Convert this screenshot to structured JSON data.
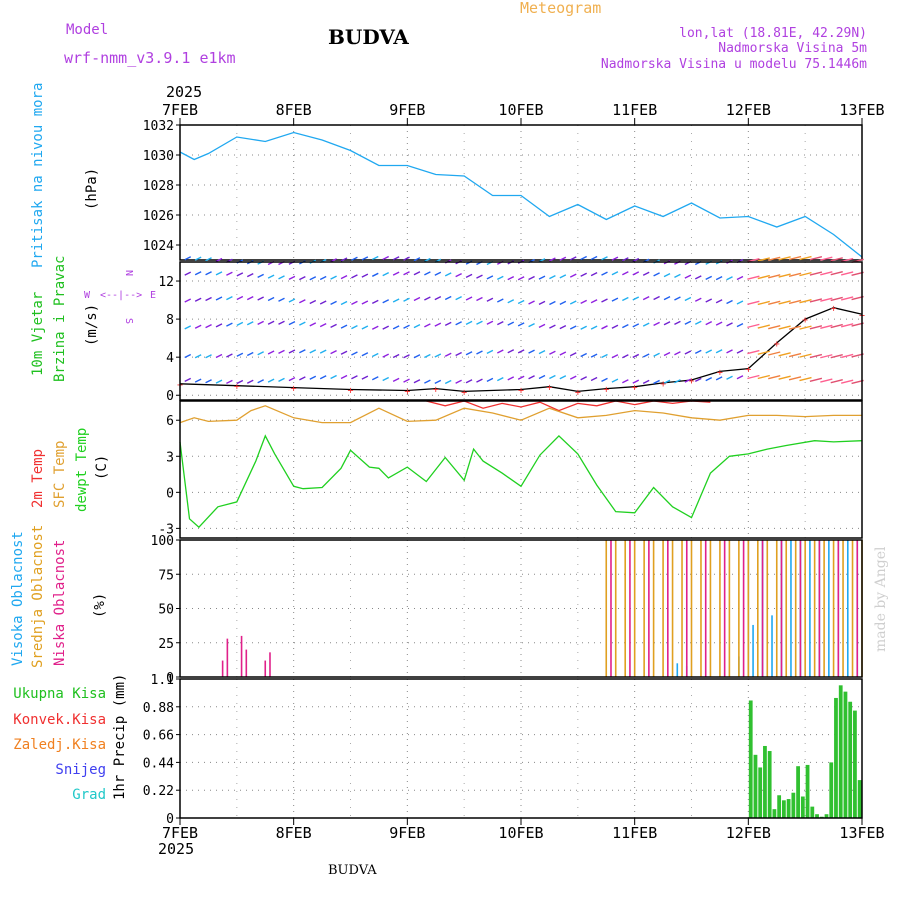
{
  "header": {
    "model_label": "Model",
    "model_name": "wrf-nmm_v3.9.1 e1km",
    "station": "BUDVA",
    "product": "Meteogram",
    "lonlat": "lon,lat (18.81E, 42.29N)",
    "elevation": "Nadmorska Visina 5m",
    "model_elevation": "Nadmorska Visina u modelu 75.1446m",
    "year_top": "2025",
    "year_bottom": "2025",
    "footer_station": "BUDVA",
    "credit": "made by Angel"
  },
  "colors": {
    "title_purple": "#b040e0",
    "product_orange": "#f0b050",
    "pressure": "#20a8f0",
    "temp2m": "#f03030",
    "sfc_temp": "#e0a030",
    "dewpoint": "#20d020",
    "high_cloud": "#20a8f0",
    "mid_cloud": "#e0a020",
    "low_cloud": "#e0208a",
    "precip_total": "#30c030",
    "convective": "#f03030",
    "freezing": "#f08020",
    "snow": "#4040f0",
    "hail": "#20c8c8",
    "wind_label": "#20c020",
    "credit": "#cfcfcf"
  },
  "legends": {
    "pressure": {
      "label": "Pritisak na nivou mora",
      "unit": "(hPa)"
    },
    "wind": {
      "label1": "10m Vjetar",
      "label2": "Brzina i Pravac",
      "unit": "(m/s)",
      "compass_w": "W",
      "compass_e": "E",
      "compass_arrows": "<--|-->",
      "compass_n": "N",
      "compass_s": "S"
    },
    "temperature": {
      "label_2m": "2m Temp",
      "label_sfc": "SFC Temp",
      "label_dew": "dewpt Temp",
      "unit": "(C)"
    },
    "cloud": {
      "high": "Visoka Oblacnost",
      "mid": "Srednja Oblacnost",
      "low": "Niska Oblacnost",
      "unit": "(%)"
    },
    "precip": {
      "total": "Ukupna Kisa",
      "convective": "Konvek.Kisa",
      "freezing": "Zaledj.Kisa",
      "snow": "Snijeg",
      "hail": "Grad",
      "unit": "1hr Precip (mm)"
    }
  },
  "chart_data": [
    {
      "type": "line",
      "name": "pressure",
      "x_unit": "hours from 7FEB 00",
      "x_ticks": [
        "7FEB",
        "8FEB",
        "9FEB",
        "10FEB",
        "11FEB",
        "12FEB",
        "13FEB"
      ],
      "ylim": [
        1023,
        1032
      ],
      "y_ticks": [
        1024,
        1026,
        1028,
        1030,
        1032
      ],
      "grid": true,
      "series": [
        {
          "x": [
            0,
            3,
            6,
            12,
            18,
            24,
            30,
            36,
            42,
            48,
            54,
            60,
            66,
            72,
            78,
            84,
            90,
            96,
            102,
            108,
            114,
            120,
            126,
            132,
            138,
            144
          ],
          "y": [
            1030.2,
            1029.7,
            1030.1,
            1031.2,
            1030.9,
            1031.5,
            1031,
            1030.3,
            1029.3,
            1029.3,
            1028.7,
            1028.6,
            1027.3,
            1027.3,
            1025.9,
            1026.7,
            1025.7,
            1026.6,
            1025.9,
            1026.8,
            1025.8,
            1025.9,
            1025.2,
            1025.9,
            1024.7,
            1023.2
          ]
        }
      ]
    },
    {
      "type": "line",
      "name": "wind",
      "ylim": [
        -0.5,
        14
      ],
      "y_ticks": [
        0,
        4,
        8,
        12
      ],
      "grid": true,
      "series": [
        {
          "name": "wind speed",
          "x": [
            0,
            12,
            24,
            36,
            48,
            54,
            60,
            72,
            78,
            84,
            90,
            96,
            102,
            108,
            114,
            120,
            126,
            132,
            138,
            144
          ],
          "y": [
            1.2,
            1,
            0.8,
            0.6,
            0.5,
            0.7,
            0.4,
            0.6,
            0.9,
            0.4,
            0.7,
            0.9,
            1.3,
            1.6,
            2.5,
            2.8,
            5.5,
            8,
            9.2,
            8.5
          ]
        }
      ],
      "barb_rows": [
        1.5,
        4.2,
        7.2,
        9.8,
        12.4,
        14
      ]
    },
    {
      "type": "line",
      "name": "temperature",
      "ylim": [
        -3.8,
        7.6
      ],
      "y_ticks": [
        -3,
        0,
        3,
        6
      ],
      "grid": true,
      "series": [
        {
          "name": "2m Temp",
          "x": [
            52,
            56,
            60,
            64,
            68,
            72,
            76,
            80,
            84,
            88,
            92,
            96,
            100,
            104,
            108,
            112
          ],
          "y": [
            7.6,
            7.2,
            7.6,
            7.0,
            7.4,
            7.1,
            7.5,
            6.8,
            7.4,
            7.2,
            7.6,
            7.3,
            7.6,
            7.4,
            7.6,
            7.5
          ]
        },
        {
          "name": "SFC Temp",
          "x": [
            0,
            3,
            6,
            12,
            15,
            18,
            24,
            30,
            36,
            42,
            48,
            54,
            60,
            66,
            72,
            78,
            84,
            90,
            96,
            102,
            108,
            114,
            120,
            126,
            132,
            138,
            144
          ],
          "y": [
            5.8,
            6.2,
            5.9,
            6.0,
            6.8,
            7.2,
            6.2,
            5.8,
            5.8,
            7.0,
            5.9,
            6.0,
            7.0,
            6.6,
            6.0,
            7.0,
            6.2,
            6.4,
            6.8,
            6.6,
            6.2,
            6.0,
            6.4,
            6.4,
            6.3,
            6.4,
            6.4
          ]
        },
        {
          "name": "dewpt Temp",
          "x": [
            0,
            2,
            4,
            8,
            12,
            16,
            18,
            20,
            24,
            26,
            30,
            34,
            36,
            40,
            42,
            44,
            48,
            52,
            56,
            60,
            62,
            64,
            68,
            72,
            76,
            80,
            84,
            88,
            92,
            96,
            100,
            104,
            108,
            112,
            116,
            120,
            124,
            128,
            134,
            138,
            144
          ],
          "y": [
            4.2,
            -2.2,
            -2.9,
            -1.2,
            -0.8,
            2.6,
            4.7,
            3.2,
            0.5,
            0.3,
            0.4,
            2.0,
            3.5,
            2.1,
            2.0,
            1.2,
            2.1,
            0.9,
            2.9,
            1.0,
            3.6,
            2.6,
            1.6,
            0.5,
            3.1,
            4.7,
            3.2,
            0.6,
            -1.6,
            -1.7,
            0.4,
            -1.2,
            -2.1,
            1.6,
            3.0,
            3.2,
            3.6,
            3.9,
            4.3,
            4.2,
            4.3
          ]
        }
      ]
    },
    {
      "type": "bar",
      "name": "cloud",
      "ylim": [
        0,
        100
      ],
      "y_ticks": [
        0,
        25,
        50,
        75,
        100
      ],
      "grid": true,
      "series": [
        {
          "name": "Visoka Oblacnost",
          "x": [
            105,
            107,
            118,
            120,
            121,
            123,
            125,
            127,
            129,
            131,
            133,
            135,
            137,
            139,
            141,
            143
          ],
          "y": [
            10,
            8,
            15,
            100,
            38,
            100,
            45,
            100,
            100,
            100,
            100,
            100,
            100,
            100,
            100,
            100
          ]
        },
        {
          "name": "Srednja Oblacnost",
          "x": [
            90,
            92,
            94,
            96,
            98,
            100,
            102,
            104,
            106,
            108,
            110,
            112,
            114,
            116,
            118,
            120,
            122,
            124,
            126,
            128,
            130,
            132,
            134,
            136,
            138,
            140,
            142,
            144
          ],
          "y": [
            100,
            100,
            100,
            100,
            100,
            100,
            100,
            100,
            100,
            100,
            100,
            100,
            100,
            100,
            100,
            100,
            100,
            100,
            100,
            100,
            100,
            100,
            100,
            100,
            100,
            100,
            100,
            100
          ]
        },
        {
          "name": "Niska Oblacnost",
          "x": [
            9,
            10,
            13,
            14,
            18,
            19,
            91,
            95,
            99,
            103,
            107,
            111,
            115,
            119,
            123,
            127,
            131,
            135,
            139,
            143
          ],
          "y": [
            12,
            28,
            30,
            20,
            12,
            18,
            100,
            100,
            100,
            100,
            100,
            100,
            100,
            100,
            100,
            100,
            100,
            100,
            100,
            100
          ]
        }
      ]
    },
    {
      "type": "bar",
      "name": "precip",
      "ylim": [
        0,
        1.1
      ],
      "y_ticks": [
        0,
        0.22,
        0.44,
        0.66,
        0.88,
        1.1
      ],
      "grid": true,
      "series": [
        {
          "name": "Ukupna Kisa",
          "x": [
            120,
            121,
            122,
            123,
            124,
            125,
            126,
            127,
            128,
            129,
            130,
            131,
            132,
            133,
            134,
            135,
            136,
            137,
            138,
            139,
            140,
            141,
            142,
            143
          ],
          "y": [
            0.93,
            0.5,
            0.4,
            0.57,
            0.53,
            0.07,
            0.18,
            0.14,
            0.15,
            0.2,
            0.41,
            0.17,
            0.42,
            0.09,
            0.03,
            0.01,
            0.03,
            0.44,
            0.95,
            1.05,
            1.0,
            0.92,
            0.85,
            0.3
          ]
        }
      ]
    }
  ]
}
